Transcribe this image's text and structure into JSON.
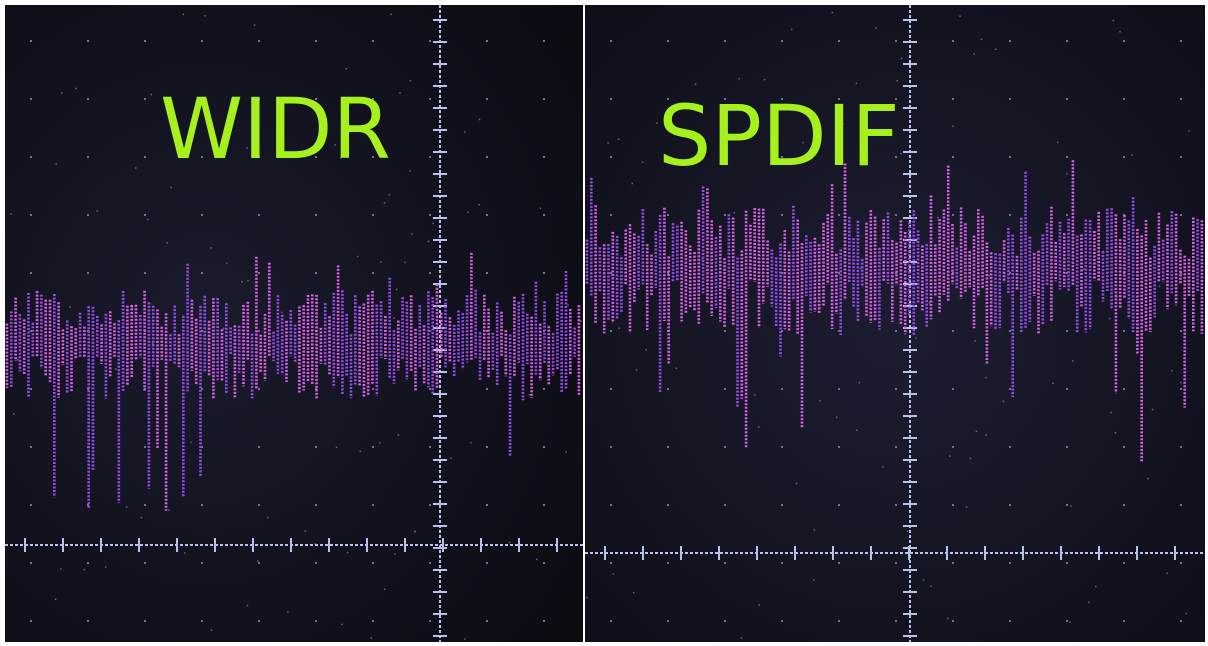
{
  "panels": [
    {
      "label": "WIDR"
    },
    {
      "label": "SPDIF"
    }
  ]
}
